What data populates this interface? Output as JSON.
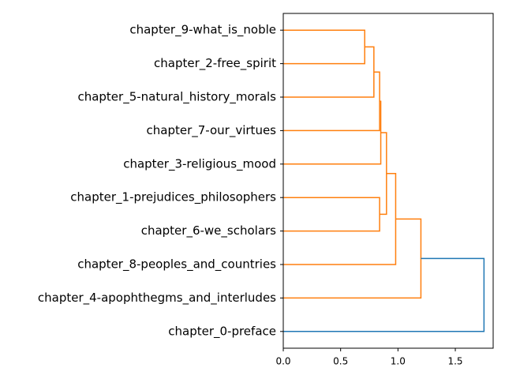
{
  "chart_data": {
    "type": "dendrogram",
    "leaves": [
      "chapter_9-what_is_noble",
      "chapter_2-free_spirit",
      "chapter_5-natural_history_morals",
      "chapter_7-our_virtues",
      "chapter_3-religious_mood",
      "chapter_1-prejudices_philosophers",
      "chapter_6-we_scholars",
      "chapter_8-peoples_and_countries",
      "chapter_4-apophthegms_and_interludes",
      "chapter_0-preface"
    ],
    "merges": [
      {
        "left": 0,
        "right": 1,
        "height": 0.71,
        "color": "#ff7f0e"
      },
      {
        "left": 10,
        "right": 2,
        "height": 0.79,
        "color": "#ff7f0e"
      },
      {
        "left": 11,
        "right": 3,
        "height": 0.84,
        "color": "#ff7f0e"
      },
      {
        "left": 5,
        "right": 6,
        "height": 0.84,
        "color": "#ff7f0e"
      },
      {
        "left": 12,
        "right": 4,
        "height": 0.85,
        "color": "#ff7f0e"
      },
      {
        "left": 14,
        "right": 13,
        "height": 0.9,
        "color": "#ff7f0e"
      },
      {
        "left": 15,
        "right": 7,
        "height": 0.98,
        "color": "#ff7f0e"
      },
      {
        "left": 16,
        "right": 8,
        "height": 1.2,
        "color": "#ff7f0e"
      },
      {
        "left": 17,
        "right": 9,
        "height": 1.75,
        "color": "#1f77b4"
      }
    ],
    "xlim": [
      0,
      1.83
    ],
    "xticks": [
      {
        "value": 0,
        "label": "0.0"
      },
      {
        "value": 0.5,
        "label": "0.5"
      },
      {
        "value": 1,
        "label": "1.0"
      },
      {
        "value": 1.5,
        "label": "1.5"
      }
    ]
  }
}
